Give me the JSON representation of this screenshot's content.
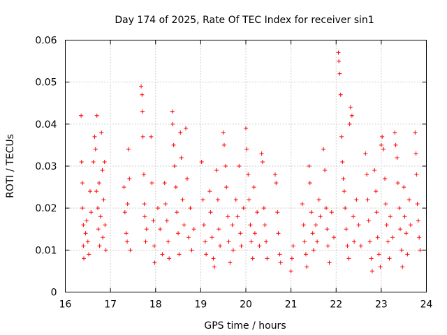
{
  "chart_data": {
    "type": "scatter",
    "title": "Day 174 of 2025, Rate Of TEC Index for receiver sin1",
    "xlabel": "GPS time / hours",
    "ylabel": "ROTI / TECUs",
    "xlim": [
      16,
      24
    ],
    "ylim": [
      0,
      0.06
    ],
    "x_ticks": [
      16,
      17,
      18,
      19,
      20,
      21,
      22,
      23,
      24
    ],
    "x_tick_labels": [
      "16",
      "17",
      "18",
      "19",
      "20",
      "21",
      "22",
      "23",
      "24"
    ],
    "y_ticks": [
      0,
      0.01,
      0.02,
      0.03,
      0.04,
      0.05,
      0.06
    ],
    "y_tick_labels": [
      "0",
      "0.01",
      "0.02",
      "0.03",
      "0.04",
      "0.05",
      "0.06"
    ],
    "grid": true,
    "marker": "plus",
    "color": "#ff0000",
    "series": [
      {
        "name": "ROTI",
        "points": [
          [
            16.35,
            0.042
          ],
          [
            16.36,
            0.031
          ],
          [
            16.38,
            0.026
          ],
          [
            16.38,
            0.02
          ],
          [
            16.4,
            0.016
          ],
          [
            16.4,
            0.011
          ],
          [
            16.41,
            0.008
          ],
          [
            16.45,
            0.014
          ],
          [
            16.47,
            0.017
          ],
          [
            16.5,
            0.012
          ],
          [
            16.52,
            0.009
          ],
          [
            16.55,
            0.024
          ],
          [
            16.57,
            0.019
          ],
          [
            16.62,
            0.031
          ],
          [
            16.65,
            0.037
          ],
          [
            16.67,
            0.034
          ],
          [
            16.69,
            0.024
          ],
          [
            16.7,
            0.042
          ],
          [
            16.72,
            0.02
          ],
          [
            16.73,
            0.015
          ],
          [
            16.75,
            0.026
          ],
          [
            16.76,
            0.011
          ],
          [
            16.78,
            0.018
          ],
          [
            16.8,
            0.038
          ],
          [
            16.82,
            0.029
          ],
          [
            16.83,
            0.013
          ],
          [
            16.85,
            0.022
          ],
          [
            16.87,
            0.031
          ],
          [
            16.88,
            0.016
          ],
          [
            16.9,
            0.01
          ],
          [
            17.3,
            0.025
          ],
          [
            17.32,
            0.019
          ],
          [
            17.35,
            0.014
          ],
          [
            17.37,
            0.012
          ],
          [
            17.38,
            0.021
          ],
          [
            17.4,
            0.034
          ],
          [
            17.42,
            0.027
          ],
          [
            17.44,
            0.01
          ],
          [
            17.68,
            0.049
          ],
          [
            17.7,
            0.047
          ],
          [
            17.71,
            0.043
          ],
          [
            17.72,
            0.037
          ],
          [
            17.74,
            0.028
          ],
          [
            17.75,
            0.021
          ],
          [
            17.76,
            0.018
          ],
          [
            17.78,
            0.012
          ],
          [
            17.8,
            0.015
          ],
          [
            17.9,
            0.037
          ],
          [
            17.92,
            0.026
          ],
          [
            17.95,
            0.017
          ],
          [
            17.97,
            0.011
          ],
          [
            17.98,
            0.007
          ],
          [
            18.05,
            0.02
          ],
          [
            18.1,
            0.015
          ],
          [
            18.15,
            0.009
          ],
          [
            18.2,
            0.026
          ],
          [
            18.22,
            0.021
          ],
          [
            18.25,
            0.017
          ],
          [
            18.28,
            0.012
          ],
          [
            18.3,
            0.008
          ],
          [
            18.37,
            0.043
          ],
          [
            18.38,
            0.04
          ],
          [
            18.4,
            0.035
          ],
          [
            18.42,
            0.03
          ],
          [
            18.45,
            0.025
          ],
          [
            18.47,
            0.019
          ],
          [
            18.5,
            0.014
          ],
          [
            18.52,
            0.009
          ],
          [
            18.55,
            0.038
          ],
          [
            18.57,
            0.032
          ],
          [
            18.6,
            0.022
          ],
          [
            18.63,
            0.016
          ],
          [
            18.67,
            0.039
          ],
          [
            18.7,
            0.027
          ],
          [
            18.73,
            0.013
          ],
          [
            18.77,
            0.02
          ],
          [
            18.8,
            0.01
          ],
          [
            18.85,
            0.015
          ],
          [
            19.02,
            0.031
          ],
          [
            19.05,
            0.022
          ],
          [
            19.07,
            0.016
          ],
          [
            19.1,
            0.012
          ],
          [
            19.12,
            0.009
          ],
          [
            19.2,
            0.024
          ],
          [
            19.22,
            0.019
          ],
          [
            19.25,
            0.013
          ],
          [
            19.28,
            0.008
          ],
          [
            19.3,
            0.006
          ],
          [
            19.35,
            0.029
          ],
          [
            19.38,
            0.022
          ],
          [
            19.4,
            0.015
          ],
          [
            19.43,
            0.011
          ],
          [
            19.5,
            0.038
          ],
          [
            19.52,
            0.035
          ],
          [
            19.55,
            0.03
          ],
          [
            19.57,
            0.025
          ],
          [
            19.6,
            0.018
          ],
          [
            19.62,
            0.012
          ],
          [
            19.65,
            0.007
          ],
          [
            19.7,
            0.016
          ],
          [
            19.72,
            0.01
          ],
          [
            19.78,
            0.022
          ],
          [
            19.82,
            0.018
          ],
          [
            19.85,
            0.03
          ],
          [
            19.88,
            0.014
          ],
          [
            19.9,
            0.011
          ],
          [
            19.95,
            0.02
          ],
          [
            20.0,
            0.039
          ],
          [
            20.02,
            0.034
          ],
          [
            20.05,
            0.028
          ],
          [
            20.07,
            0.022
          ],
          [
            20.1,
            0.016
          ],
          [
            20.12,
            0.012
          ],
          [
            20.15,
            0.008
          ],
          [
            20.18,
            0.025
          ],
          [
            20.2,
            0.014
          ],
          [
            20.25,
            0.019
          ],
          [
            20.3,
            0.011
          ],
          [
            20.35,
            0.033
          ],
          [
            20.37,
            0.031
          ],
          [
            20.4,
            0.02
          ],
          [
            20.42,
            0.016
          ],
          [
            20.45,
            0.012
          ],
          [
            20.47,
            0.008
          ],
          [
            20.65,
            0.028
          ],
          [
            20.67,
            0.026
          ],
          [
            20.7,
            0.019
          ],
          [
            20.72,
            0.014
          ],
          [
            20.75,
            0.009
          ],
          [
            20.77,
            0.007
          ],
          [
            21.0,
            0.005
          ],
          [
            21.02,
            0.008
          ],
          [
            21.05,
            0.011
          ],
          [
            21.25,
            0.021
          ],
          [
            21.28,
            0.016
          ],
          [
            21.3,
            0.012
          ],
          [
            21.33,
            0.009
          ],
          [
            21.35,
            0.006
          ],
          [
            21.4,
            0.03
          ],
          [
            21.42,
            0.026
          ],
          [
            21.45,
            0.019
          ],
          [
            21.48,
            0.014
          ],
          [
            21.5,
            0.01
          ],
          [
            21.55,
            0.016
          ],
          [
            21.58,
            0.012
          ],
          [
            21.62,
            0.022
          ],
          [
            21.65,
            0.018
          ],
          [
            21.72,
            0.034
          ],
          [
            21.75,
            0.029
          ],
          [
            21.78,
            0.02
          ],
          [
            21.8,
            0.015
          ],
          [
            21.82,
            0.011
          ],
          [
            21.85,
            0.007
          ],
          [
            21.9,
            0.019
          ],
          [
            21.95,
            0.013
          ],
          [
            22.05,
            0.057
          ],
          [
            22.06,
            0.055
          ],
          [
            22.08,
            0.052
          ],
          [
            22.1,
            0.047
          ],
          [
            22.12,
            0.037
          ],
          [
            22.14,
            0.031
          ],
          [
            22.16,
            0.027
          ],
          [
            22.18,
            0.024
          ],
          [
            22.2,
            0.02
          ],
          [
            22.22,
            0.015
          ],
          [
            22.25,
            0.011
          ],
          [
            22.28,
            0.008
          ],
          [
            22.3,
            0.04
          ],
          [
            22.32,
            0.044
          ],
          [
            22.35,
            0.042
          ],
          [
            22.38,
            0.018
          ],
          [
            22.4,
            0.012
          ],
          [
            22.45,
            0.022
          ],
          [
            22.5,
            0.016
          ],
          [
            22.55,
            0.011
          ],
          [
            22.65,
            0.033
          ],
          [
            22.68,
            0.028
          ],
          [
            22.7,
            0.022
          ],
          [
            22.72,
            0.017
          ],
          [
            22.75,
            0.012
          ],
          [
            22.78,
            0.008
          ],
          [
            22.8,
            0.005
          ],
          [
            22.85,
            0.029
          ],
          [
            22.88,
            0.024
          ],
          [
            22.9,
            0.019
          ],
          [
            22.92,
            0.013
          ],
          [
            22.95,
            0.009
          ],
          [
            22.98,
            0.006
          ],
          [
            23.0,
            0.035
          ],
          [
            23.02,
            0.037
          ],
          [
            23.05,
            0.034
          ],
          [
            23.08,
            0.027
          ],
          [
            23.1,
            0.021
          ],
          [
            23.12,
            0.016
          ],
          [
            23.15,
            0.012
          ],
          [
            23.18,
            0.008
          ],
          [
            23.2,
            0.018
          ],
          [
            23.25,
            0.013
          ],
          [
            23.3,
            0.038
          ],
          [
            23.32,
            0.035
          ],
          [
            23.35,
            0.032
          ],
          [
            23.37,
            0.026
          ],
          [
            23.4,
            0.02
          ],
          [
            23.42,
            0.015
          ],
          [
            23.45,
            0.01
          ],
          [
            23.47,
            0.006
          ],
          [
            23.5,
            0.025
          ],
          [
            23.52,
            0.018
          ],
          [
            23.55,
            0.014
          ],
          [
            23.58,
            0.009
          ],
          [
            23.62,
            0.022
          ],
          [
            23.65,
            0.016
          ],
          [
            23.75,
            0.038
          ],
          [
            23.77,
            0.033
          ],
          [
            23.78,
            0.028
          ],
          [
            23.8,
            0.021
          ],
          [
            23.82,
            0.017
          ],
          [
            23.84,
            0.013
          ],
          [
            23.86,
            0.01
          ]
        ]
      }
    ]
  }
}
